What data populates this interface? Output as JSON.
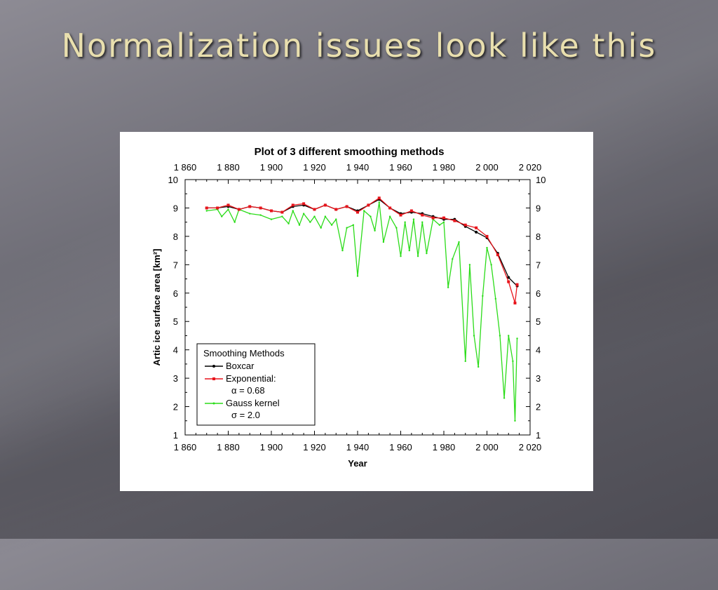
{
  "slide": {
    "title": "Normalization issues look like this"
  },
  "colors": {
    "title": "#e9dfae",
    "boxcar": "#000000",
    "exponential": "#e8141b",
    "gauss": "#2bdc19"
  },
  "legend": {
    "title": "Smoothing Methods",
    "boxcar": "Boxcar",
    "exponential": "Exponential:",
    "exponential_param": "α = 0.68",
    "gauss": "Gauss kernel",
    "gauss_param": "σ = 2.0"
  },
  "chart_data": {
    "type": "line",
    "title": "Plot of 3 different smoothing methods",
    "xlabel": "Year",
    "ylabel": "Artic ice surface area [km²]",
    "xlim": [
      1860,
      2020
    ],
    "ylim": [
      1,
      10
    ],
    "x_ticks": [
      1860,
      1880,
      1900,
      1920,
      1940,
      1960,
      1980,
      2000,
      2020
    ],
    "x_tick_labels": [
      "1 860",
      "1 880",
      "1 900",
      "1 920",
      "1 940",
      "1 960",
      "1 980",
      "2 000",
      "2 020"
    ],
    "y_ticks": [
      1,
      2,
      3,
      4,
      5,
      6,
      7,
      8,
      9,
      10
    ],
    "y_tick_labels": [
      "1",
      "2",
      "3",
      "4",
      "5",
      "6",
      "7",
      "8",
      "9",
      "10"
    ],
    "legend_position": "bottom-left",
    "grid": false,
    "series": [
      {
        "name": "Boxcar",
        "color": "#000000",
        "marker": "dot",
        "points": [
          [
            1870,
            9.0
          ],
          [
            1875,
            9.0
          ],
          [
            1880,
            9.05
          ],
          [
            1885,
            8.95
          ],
          [
            1890,
            9.05
          ],
          [
            1895,
            9.0
          ],
          [
            1900,
            8.9
          ],
          [
            1905,
            8.85
          ],
          [
            1910,
            9.05
          ],
          [
            1915,
            9.1
          ],
          [
            1920,
            8.95
          ],
          [
            1925,
            9.1
          ],
          [
            1930,
            8.95
          ],
          [
            1935,
            9.05
          ],
          [
            1940,
            8.9
          ],
          [
            1945,
            9.1
          ],
          [
            1950,
            9.3
          ],
          [
            1955,
            9.0
          ],
          [
            1960,
            8.8
          ],
          [
            1965,
            8.85
          ],
          [
            1970,
            8.8
          ],
          [
            1975,
            8.7
          ],
          [
            1980,
            8.6
          ],
          [
            1985,
            8.6
          ],
          [
            1990,
            8.35
          ],
          [
            1995,
            8.15
          ],
          [
            2000,
            7.95
          ],
          [
            2005,
            7.4
          ],
          [
            2010,
            6.55
          ],
          [
            2014,
            6.25
          ]
        ]
      },
      {
        "name": "Exponential: α = 0.68",
        "color": "#e8141b",
        "marker": "square",
        "points": [
          [
            1870,
            9.0
          ],
          [
            1875,
            9.0
          ],
          [
            1880,
            9.1
          ],
          [
            1885,
            8.95
          ],
          [
            1890,
            9.05
          ],
          [
            1895,
            9.0
          ],
          [
            1900,
            8.9
          ],
          [
            1905,
            8.85
          ],
          [
            1910,
            9.1
          ],
          [
            1915,
            9.15
          ],
          [
            1920,
            8.95
          ],
          [
            1925,
            9.1
          ],
          [
            1930,
            8.95
          ],
          [
            1935,
            9.05
          ],
          [
            1940,
            8.85
          ],
          [
            1945,
            9.1
          ],
          [
            1950,
            9.35
          ],
          [
            1955,
            9.0
          ],
          [
            1960,
            8.75
          ],
          [
            1965,
            8.9
          ],
          [
            1970,
            8.75
          ],
          [
            1975,
            8.65
          ],
          [
            1980,
            8.65
          ],
          [
            1985,
            8.55
          ],
          [
            1990,
            8.4
          ],
          [
            1995,
            8.3
          ],
          [
            2000,
            8.0
          ],
          [
            2005,
            7.35
          ],
          [
            2010,
            6.4
          ],
          [
            2013,
            5.65
          ],
          [
            2014,
            6.3
          ]
        ]
      },
      {
        "name": "Gauss kernel σ = 2.0",
        "color": "#2bdc19",
        "marker": "dot",
        "points": [
          [
            1870,
            8.9
          ],
          [
            1875,
            8.95
          ],
          [
            1877,
            8.7
          ],
          [
            1880,
            8.95
          ],
          [
            1883,
            8.5
          ],
          [
            1885,
            8.95
          ],
          [
            1890,
            8.8
          ],
          [
            1895,
            8.75
          ],
          [
            1900,
            8.6
          ],
          [
            1905,
            8.7
          ],
          [
            1908,
            8.45
          ],
          [
            1910,
            8.9
          ],
          [
            1913,
            8.4
          ],
          [
            1915,
            8.8
          ],
          [
            1918,
            8.5
          ],
          [
            1920,
            8.7
          ],
          [
            1923,
            8.3
          ],
          [
            1925,
            8.7
          ],
          [
            1928,
            8.4
          ],
          [
            1930,
            8.6
          ],
          [
            1933,
            7.5
          ],
          [
            1935,
            8.3
          ],
          [
            1938,
            8.4
          ],
          [
            1940,
            6.6
          ],
          [
            1943,
            8.9
          ],
          [
            1946,
            8.7
          ],
          [
            1948,
            8.2
          ],
          [
            1950,
            9.2
          ],
          [
            1952,
            7.8
          ],
          [
            1955,
            8.7
          ],
          [
            1958,
            8.3
          ],
          [
            1960,
            7.3
          ],
          [
            1962,
            8.5
          ],
          [
            1964,
            7.5
          ],
          [
            1966,
            8.6
          ],
          [
            1968,
            7.3
          ],
          [
            1970,
            8.5
          ],
          [
            1972,
            7.4
          ],
          [
            1975,
            8.6
          ],
          [
            1978,
            8.4
          ],
          [
            1980,
            8.5
          ],
          [
            1982,
            6.2
          ],
          [
            1984,
            7.2
          ],
          [
            1987,
            7.8
          ],
          [
            1990,
            3.6
          ],
          [
            1992,
            7.0
          ],
          [
            1994,
            4.5
          ],
          [
            1996,
            3.4
          ],
          [
            1998,
            5.9
          ],
          [
            2000,
            7.6
          ],
          [
            2002,
            7.0
          ],
          [
            2004,
            5.8
          ],
          [
            2006,
            4.5
          ],
          [
            2008,
            2.3
          ],
          [
            2010,
            4.5
          ],
          [
            2012,
            3.6
          ],
          [
            2013,
            1.5
          ],
          [
            2014,
            4.4
          ]
        ]
      }
    ]
  }
}
